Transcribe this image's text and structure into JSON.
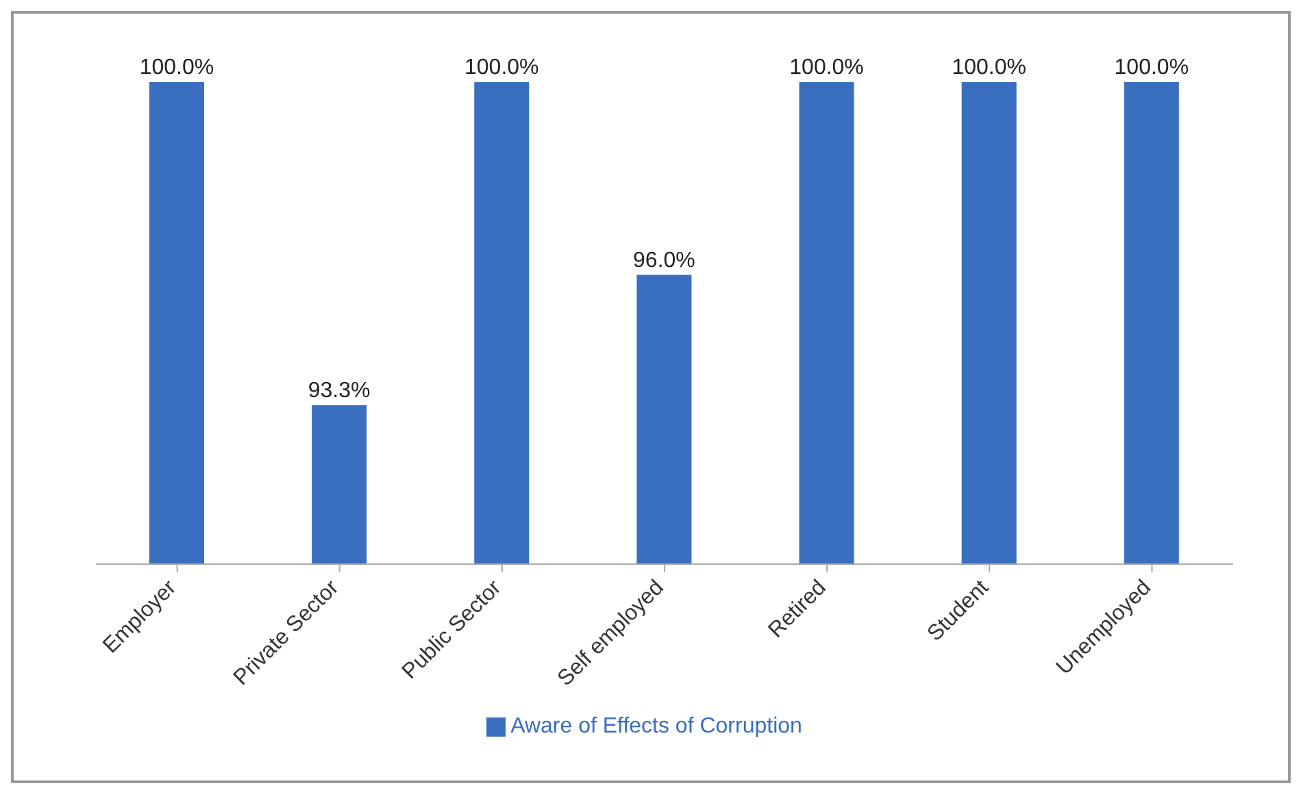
{
  "chart_data": {
    "type": "bar",
    "categories": [
      "Employer",
      "Private Sector",
      "Public Sector",
      "Self employed",
      "Retired",
      "Student",
      "Unemployed"
    ],
    "series": [
      {
        "name": "Aware of Effects of Corruption",
        "color": "#3a6fbf",
        "values": [
          100,
          93.3,
          100,
          96,
          100,
          100,
          100
        ],
        "value_labels": [
          "100.0%",
          "93.3%",
          "100.0%",
          "96.0%",
          "100.0%",
          "100.0%",
          "100.0%"
        ]
      }
    ],
    "ylim": [
      90,
      100
    ],
    "legend": "bottom",
    "tick_labels": "x"
  }
}
